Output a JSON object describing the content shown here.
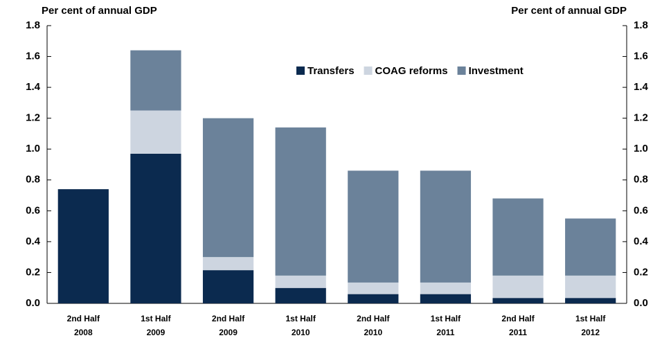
{
  "chart_data": {
    "type": "stacked_bar",
    "y_label": "Per cent of annual GDP",
    "y2_label": "Per cent of annual GDP",
    "categories": [
      "2nd Half 2008",
      "1st Half 2009",
      "2nd Half 2009",
      "1st Half 2010",
      "2nd Half 2010",
      "1st Half 2011",
      "2nd Half 2011",
      "1st Half 2012"
    ],
    "series": [
      {
        "name": "Transfers",
        "color": "#0b2a4f",
        "values": [
          0.74,
          0.97,
          0.215,
          0.1,
          0.06,
          0.06,
          0.035,
          0.035
        ]
      },
      {
        "name": "COAG reforms",
        "color": "#cdd5e0",
        "values": [
          0,
          0.28,
          0.085,
          0.08,
          0.075,
          0.075,
          0.145,
          0.145
        ]
      },
      {
        "name": "Investment",
        "color": "#6b829a",
        "values": [
          0,
          0.39,
          0.9,
          0.96,
          0.725,
          0.725,
          0.5,
          0.37
        ]
      }
    ],
    "ylim": [
      0,
      1.8
    ],
    "yticks": [
      {
        "value": 0,
        "label": "0.0"
      },
      0.2,
      0.4,
      0.6,
      0.8,
      {
        "value": 1,
        "label": "1.0"
      },
      1.2,
      1.4,
      1.6,
      1.8
    ],
    "y2lim": [
      0,
      1.8
    ],
    "y2ticks": [
      {
        "value": 0,
        "label": "0.0"
      },
      0.2,
      0.4,
      0.6,
      0.8,
      {
        "value": 1,
        "label": "1.0"
      },
      1.2,
      1.4,
      1.6,
      1.8
    ],
    "legend": "top-right"
  }
}
